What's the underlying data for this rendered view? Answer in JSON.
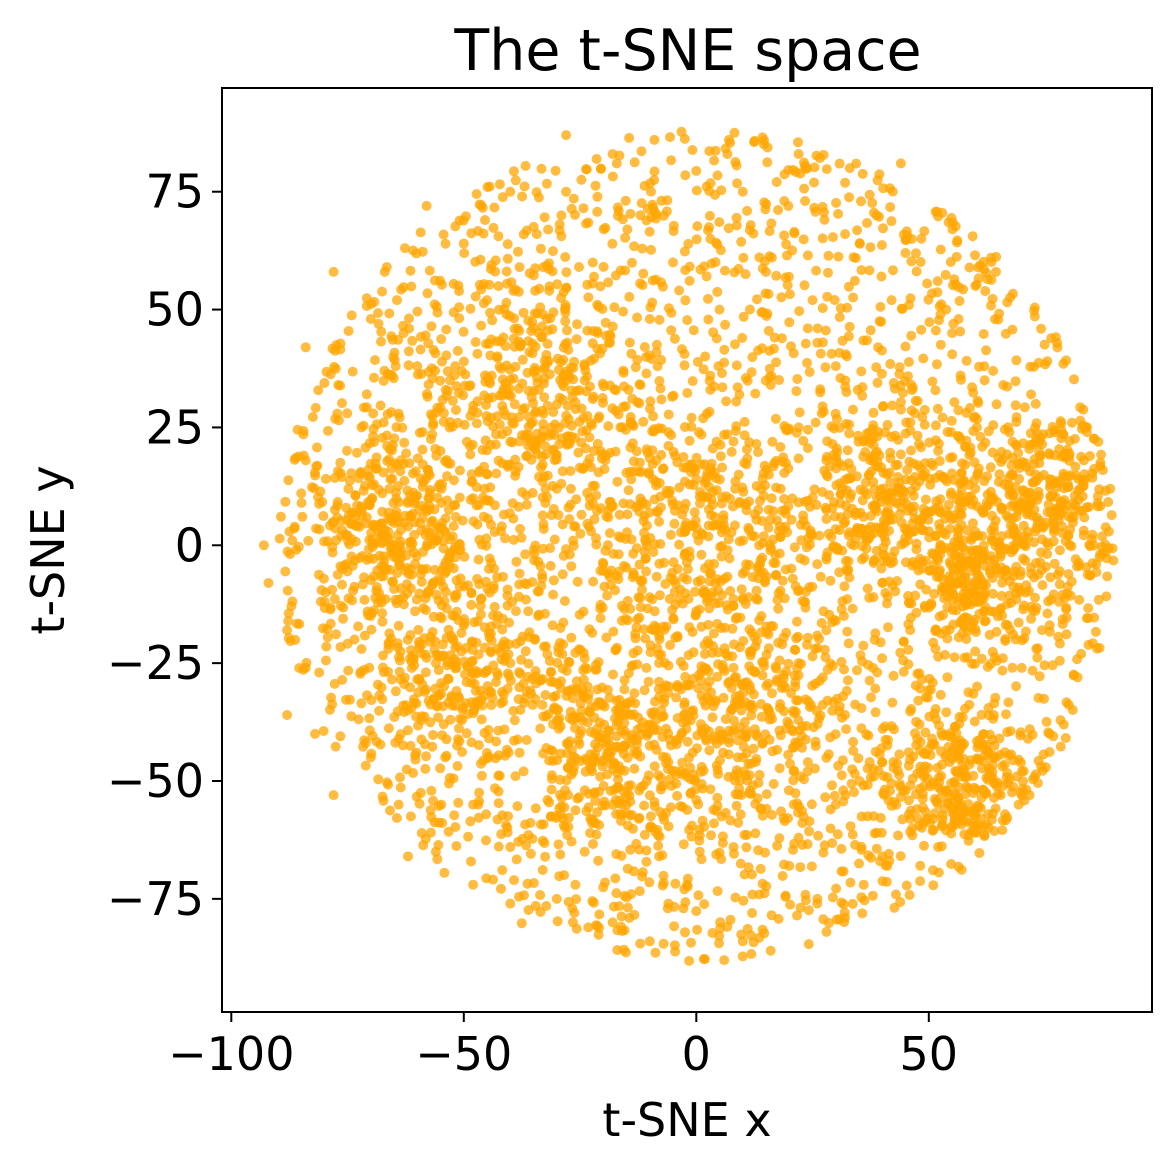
{
  "chart_data": {
    "type": "scatter",
    "title": "The t-SNE space",
    "xlabel": "t-SNE x",
    "ylabel": "t-SNE y",
    "xlim": [
      -102,
      98
    ],
    "ylim": [
      -99,
      97
    ],
    "x_ticks": [
      -100,
      -50,
      0,
      50
    ],
    "y_ticks": [
      -75,
      -50,
      -25,
      0,
      25,
      50,
      75
    ],
    "x_tick_labels": [
      "−100",
      "−50",
      "0",
      "50"
    ],
    "y_tick_labels": [
      "−75",
      "−50",
      "−25",
      "0",
      "25",
      "50",
      "75"
    ],
    "grid": false,
    "point_color": "#FFA500",
    "point_alpha": 0.75,
    "data_extent": {
      "x": [
        -94,
        91
      ],
      "y": [
        -90,
        89
      ]
    },
    "density_centers": [
      {
        "x": 0,
        "y": 5,
        "spread": 22
      },
      {
        "x": 10,
        "y": -35,
        "spread": 20
      },
      {
        "x": -20,
        "y": -45,
        "spread": 18
      },
      {
        "x": 75,
        "y": 10,
        "spread": 15
      },
      {
        "x": 60,
        "y": -8,
        "spread": 12
      },
      {
        "x": 40,
        "y": 10,
        "spread": 15
      },
      {
        "x": -35,
        "y": 30,
        "spread": 20
      },
      {
        "x": -50,
        "y": -25,
        "spread": 18
      },
      {
        "x": 55,
        "y": -50,
        "spread": 14
      },
      {
        "x": -65,
        "y": 5,
        "spread": 14
      }
    ],
    "series": [
      {
        "name": "",
        "points": [
          [
            -28,
            87
          ],
          [
            -9,
            86
          ],
          [
            7,
            86
          ],
          [
            22,
            83
          ],
          [
            -18,
            83
          ],
          [
            33,
            80
          ],
          [
            44,
            81
          ],
          [
            -40,
            75
          ],
          [
            -58,
            72
          ],
          [
            -28,
            75
          ],
          [
            -12,
            70
          ],
          [
            10,
            75
          ],
          [
            32,
            66
          ],
          [
            -50,
            64
          ],
          [
            -67,
            58
          ],
          [
            -78,
            58
          ],
          [
            -45,
            52
          ],
          [
            -22,
            57
          ],
          [
            -5,
            60
          ],
          [
            15,
            58
          ],
          [
            45,
            62
          ],
          [
            60,
            55
          ],
          [
            -84,
            42
          ],
          [
            -70,
            48
          ],
          [
            -33,
            49
          ],
          [
            -10,
            48
          ],
          [
            5,
            50
          ],
          [
            25,
            52
          ],
          [
            42,
            52
          ],
          [
            55,
            45
          ],
          [
            -77,
            34
          ],
          [
            -60,
            38
          ],
          [
            -44,
            36
          ],
          [
            -28,
            35
          ],
          [
            -12,
            34
          ],
          [
            3,
            36
          ],
          [
            16,
            34
          ],
          [
            30,
            38
          ],
          [
            47,
            28
          ],
          [
            62,
            35
          ],
          [
            72,
            32
          ],
          [
            -72,
            25
          ],
          [
            -55,
            20
          ],
          [
            -40,
            22
          ],
          [
            -22,
            20
          ],
          [
            -6,
            24
          ],
          [
            8,
            22
          ],
          [
            22,
            25
          ],
          [
            36,
            22
          ],
          [
            52,
            20
          ],
          [
            68,
            22
          ],
          [
            84,
            24
          ],
          [
            -84,
            18
          ],
          [
            -66,
            12
          ],
          [
            -48,
            10
          ],
          [
            -30,
            12
          ],
          [
            -14,
            14
          ],
          [
            0,
            14
          ],
          [
            14,
            12
          ],
          [
            28,
            15
          ],
          [
            44,
            12
          ],
          [
            60,
            12
          ],
          [
            76,
            14
          ],
          [
            89,
            12
          ],
          [
            -78,
            5
          ],
          [
            -62,
            4
          ],
          [
            -42,
            3
          ],
          [
            -26,
            4
          ],
          [
            -8,
            5
          ],
          [
            4,
            6
          ],
          [
            18,
            4
          ],
          [
            32,
            5
          ],
          [
            48,
            4
          ],
          [
            64,
            4
          ],
          [
            80,
            2
          ],
          [
            -93,
            0
          ],
          [
            -76,
            -5
          ],
          [
            -58,
            -5
          ],
          [
            -38,
            -6
          ],
          [
            -20,
            -4
          ],
          [
            -4,
            -5
          ],
          [
            10,
            -6
          ],
          [
            26,
            -4
          ],
          [
            40,
            -8
          ],
          [
            56,
            -8
          ],
          [
            72,
            -6
          ],
          [
            86,
            -4
          ],
          [
            -92,
            -8
          ],
          [
            -70,
            -15
          ],
          [
            -52,
            -15
          ],
          [
            -34,
            -15
          ],
          [
            -16,
            -16
          ],
          [
            0,
            -14
          ],
          [
            14,
            -15
          ],
          [
            30,
            -16
          ],
          [
            46,
            -18
          ],
          [
            62,
            -14
          ],
          [
            78,
            -12
          ],
          [
            -88,
            -18
          ],
          [
            -72,
            -22
          ],
          [
            -56,
            -25
          ],
          [
            -40,
            -25
          ],
          [
            -24,
            -24
          ],
          [
            -8,
            -25
          ],
          [
            8,
            -26
          ],
          [
            22,
            -25
          ],
          [
            38,
            -26
          ],
          [
            54,
            -28
          ],
          [
            70,
            -26
          ],
          [
            82,
            -28
          ],
          [
            -84,
            -26
          ],
          [
            -62,
            -35
          ],
          [
            -46,
            -34
          ],
          [
            -30,
            -35
          ],
          [
            -14,
            -36
          ],
          [
            2,
            -34
          ],
          [
            16,
            -36
          ],
          [
            32,
            -36
          ],
          [
            48,
            -38
          ],
          [
            64,
            -36
          ],
          [
            76,
            -40
          ],
          [
            -88,
            -36
          ],
          [
            -70,
            -45
          ],
          [
            -54,
            -45
          ],
          [
            -38,
            -44
          ],
          [
            -22,
            -45
          ],
          [
            -6,
            -46
          ],
          [
            10,
            -45
          ],
          [
            24,
            -46
          ],
          [
            40,
            -46
          ],
          [
            56,
            -48
          ],
          [
            70,
            -48
          ],
          [
            -82,
            -40
          ],
          [
            -64,
            -55
          ],
          [
            -48,
            -55
          ],
          [
            -32,
            -54
          ],
          [
            -16,
            -55
          ],
          [
            0,
            -54
          ],
          [
            14,
            -56
          ],
          [
            30,
            -55
          ],
          [
            46,
            -58
          ],
          [
            60,
            -56
          ],
          [
            -78,
            -53
          ],
          [
            -56,
            -65
          ],
          [
            -40,
            -64
          ],
          [
            -24,
            -65
          ],
          [
            -8,
            -66
          ],
          [
            8,
            -64
          ],
          [
            22,
            -62
          ],
          [
            40,
            -66
          ],
          [
            52,
            -64
          ],
          [
            -62,
            -66
          ],
          [
            -48,
            -72
          ],
          [
            -30,
            -75
          ],
          [
            -14,
            -74
          ],
          [
            -2,
            -72
          ],
          [
            12,
            -78
          ],
          [
            26,
            -76
          ],
          [
            36,
            -72
          ],
          [
            -40,
            -76
          ],
          [
            -18,
            -80
          ],
          [
            16,
            -86
          ],
          [
            10,
            -84
          ],
          [
            28,
            -82
          ],
          [
            32,
            -79
          ],
          [
            -6,
            -76
          ],
          [
            20,
            -68
          ],
          [
            -26,
            -72
          ],
          [
            6,
            -88
          ],
          [
            -10,
            -84
          ]
        ]
      }
    ]
  }
}
